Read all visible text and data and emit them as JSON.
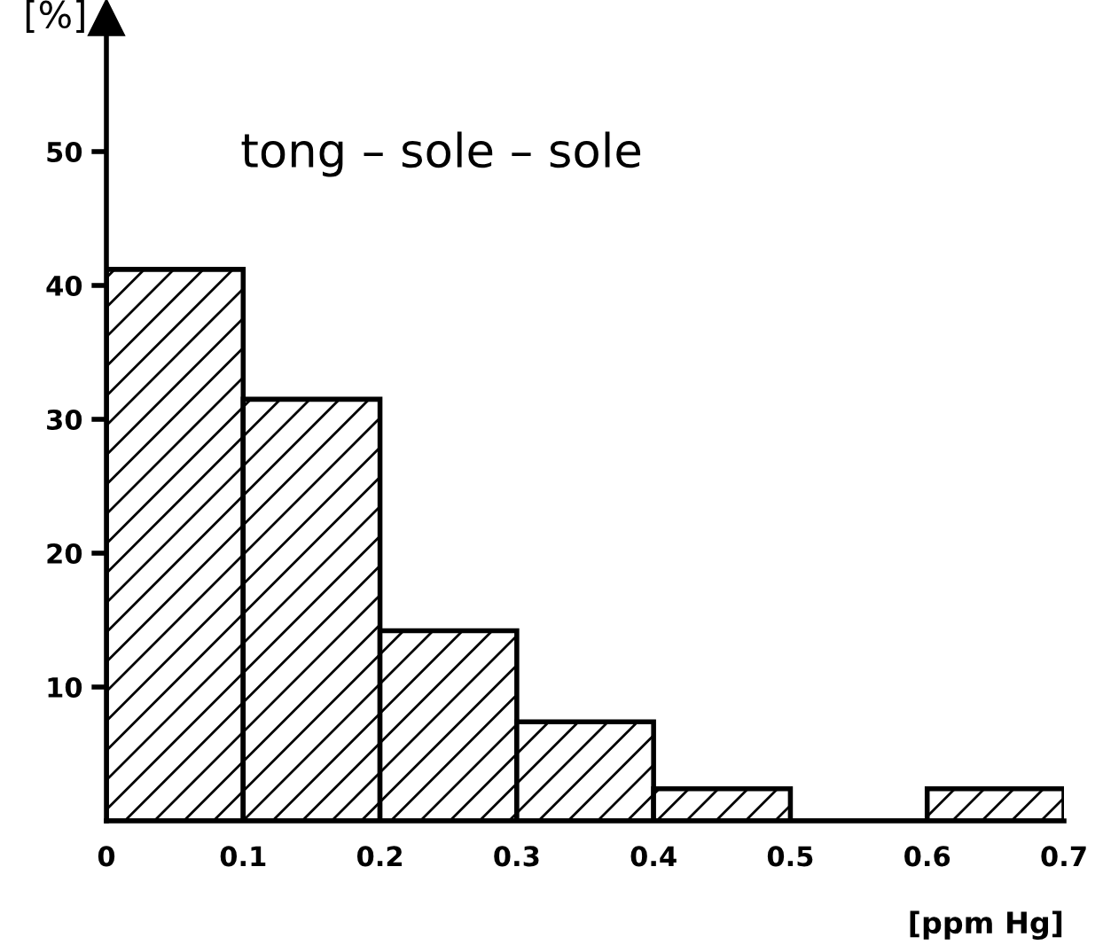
{
  "chart_data": {
    "type": "histogram",
    "title": "tong – sole – sole",
    "xlabel": "[ppm Hg]",
    "ylabel": "[%]",
    "bins": [
      0,
      0.1,
      0.2,
      0.3,
      0.4,
      0.5,
      0.6,
      0.7
    ],
    "values": [
      41.2,
      31.5,
      14.2,
      7.4,
      2.4,
      0,
      2.4
    ],
    "color": "#000000",
    "xlim": [
      0,
      0.7
    ],
    "ylim": [
      0,
      60
    ],
    "xticks": [
      0,
      0.1,
      0.2,
      0.3,
      0.4,
      0.5,
      0.6,
      0.7
    ],
    "yticks": [
      10,
      20,
      30,
      40,
      50
    ],
    "grid": false
  }
}
